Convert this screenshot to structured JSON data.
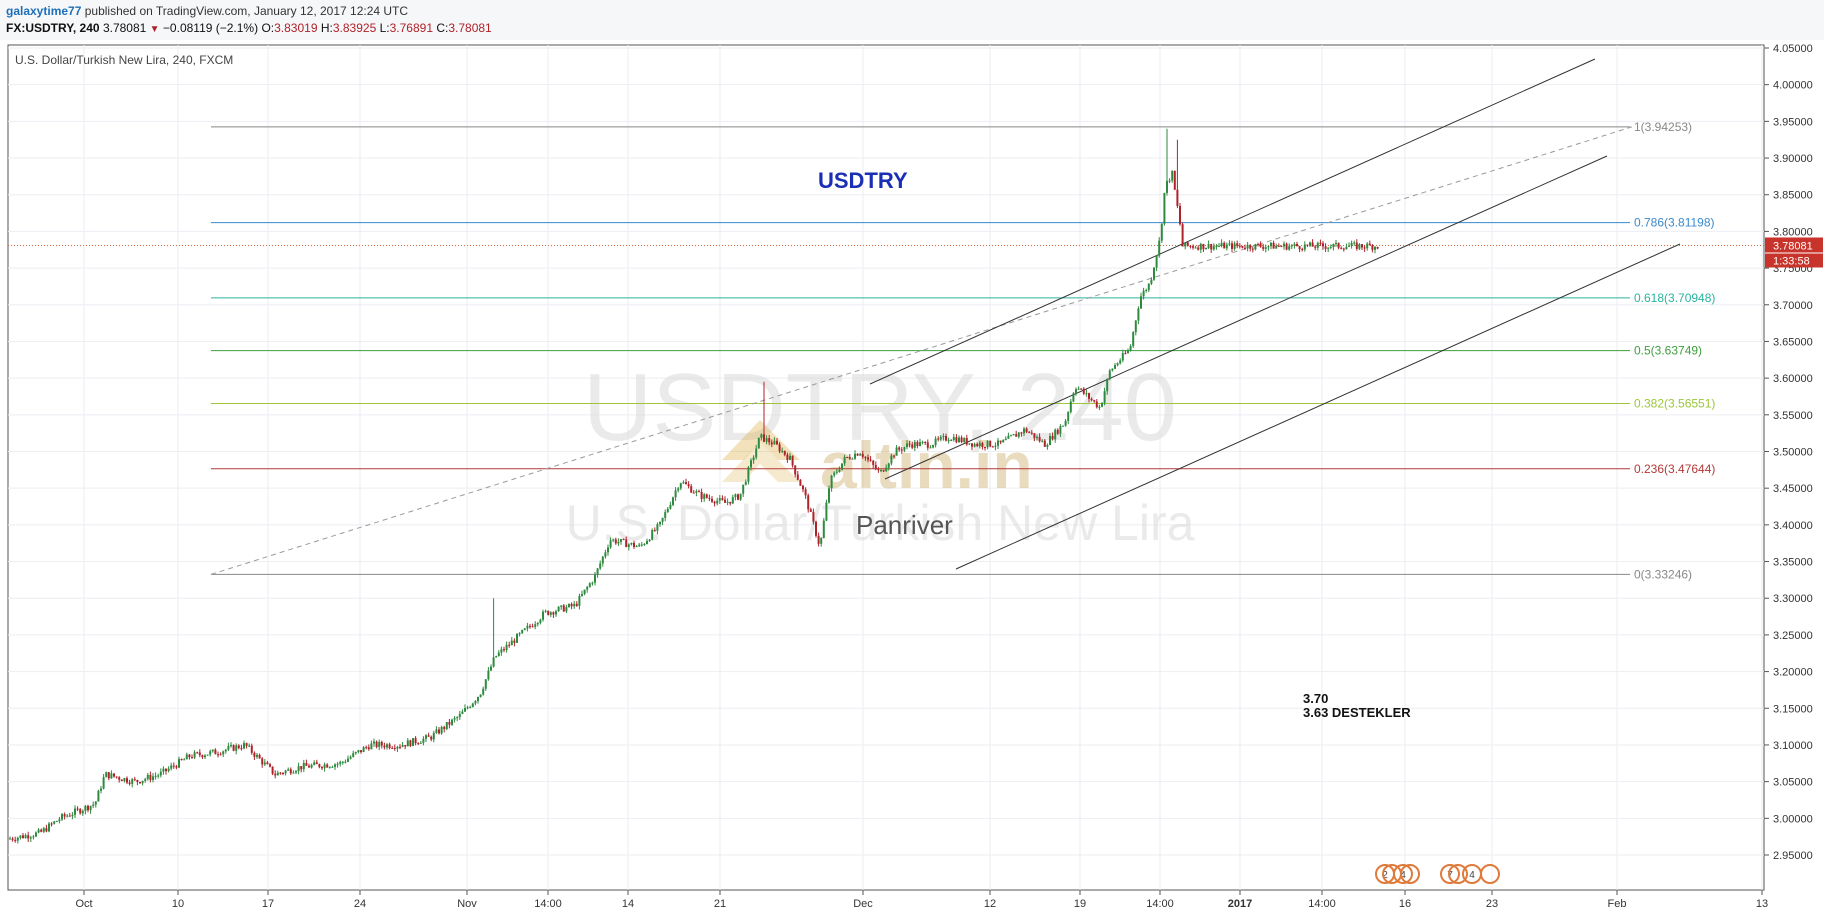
{
  "header": {
    "author": "galaxytime77",
    "published_text": "published on TradingView.com, January 12, 2017 12:24 UTC",
    "symbol": "FX:USDTRY, 240",
    "last_price": "3.78081",
    "change_arrow": "▼",
    "change": "−0.08119 (−2.1%)",
    "open_label": "O:",
    "open": "3.83019",
    "high_label": "H:",
    "high": "3.83925",
    "low_label": "L:",
    "low": "3.76891",
    "close_label": "C:",
    "close": "3.78081"
  },
  "chart_data": {
    "type": "candlestick",
    "title": "U.S. Dollar/Turkish New Lira, 240, FXCM",
    "watermark": {
      "line1": "USDTRY, 240",
      "line2": "U.S. Dollar/Turkish New Lira"
    },
    "overlay_texts": {
      "name": "USDTRY",
      "logo": "altin.in",
      "author": "Panriver",
      "note_line1": "3.70",
      "note_line2": "3.63  DESTEKLER"
    },
    "y_ticks": [
      "4.05000",
      "4.00000",
      "3.95000",
      "3.90000",
      "3.85000",
      "3.80000",
      "3.75000",
      "3.70000",
      "3.65000",
      "3.60000",
      "3.55000",
      "3.50000",
      "3.45000",
      "3.40000",
      "3.35000",
      "3.30000",
      "3.25000",
      "3.20000",
      "3.15000",
      "3.10000",
      "3.05000",
      "3.00000",
      "2.95000"
    ],
    "ylim": [
      2.925,
      4.06
    ],
    "x_ticks": [
      "Oct",
      "10",
      "17",
      "24",
      "Nov",
      "14:00",
      "14",
      "21",
      "Dec",
      "12",
      "19",
      "14:00",
      "2017",
      "14:00",
      "16",
      "23",
      "Feb",
      "13"
    ],
    "last_price_label": "3.78081",
    "countdown_label": "1:33:58",
    "fib_levels": [
      {
        "label": "1(3.94253)",
        "value": 3.94253,
        "color": "#888888"
      },
      {
        "label": "0.786(3.81198)",
        "value": 3.81198,
        "color": "#3a89c9"
      },
      {
        "label": "0.618(3.70948)",
        "value": 3.70948,
        "color": "#2bb3a0"
      },
      {
        "label": "0.5(3.63749)",
        "value": 3.63749,
        "color": "#3e9e3e"
      },
      {
        "label": "0.382(3.56551)",
        "value": 3.56551,
        "color": "#9cc63b"
      },
      {
        "label": "0.236(3.47644)",
        "value": 3.47644,
        "color": "#b33a3a"
      },
      {
        "label": "0(3.33246)",
        "value": 3.33246,
        "color": "#888888"
      }
    ],
    "price_anchors": [
      [
        0,
        2.97
      ],
      [
        40,
        2.98
      ],
      [
        60,
        3.0
      ],
      [
        95,
        3.02
      ],
      [
        105,
        3.06
      ],
      [
        135,
        3.05
      ],
      [
        160,
        3.06
      ],
      [
        190,
        3.085
      ],
      [
        215,
        3.09
      ],
      [
        245,
        3.1
      ],
      [
        275,
        3.06
      ],
      [
        300,
        3.07
      ],
      [
        340,
        3.075
      ],
      [
        370,
        3.1
      ],
      [
        400,
        3.1
      ],
      [
        430,
        3.11
      ],
      [
        460,
        3.14
      ],
      [
        480,
        3.17
      ],
      [
        495,
        3.22
      ],
      [
        520,
        3.25
      ],
      [
        545,
        3.28
      ],
      [
        575,
        3.29
      ],
      [
        595,
        3.33
      ],
      [
        610,
        3.38
      ],
      [
        640,
        3.37
      ],
      [
        660,
        3.4
      ],
      [
        680,
        3.46
      ],
      [
        700,
        3.44
      ],
      [
        725,
        3.43
      ],
      [
        740,
        3.44
      ],
      [
        760,
        3.52
      ],
      [
        775,
        3.51
      ],
      [
        790,
        3.49
      ],
      [
        805,
        3.44
      ],
      [
        820,
        3.37
      ],
      [
        830,
        3.46
      ],
      [
        845,
        3.49
      ],
      [
        860,
        3.5
      ],
      [
        880,
        3.47
      ],
      [
        895,
        3.5
      ],
      [
        910,
        3.51
      ],
      [
        930,
        3.51
      ],
      [
        950,
        3.52
      ],
      [
        975,
        3.51
      ],
      [
        1000,
        3.51
      ],
      [
        1025,
        3.53
      ],
      [
        1045,
        3.51
      ],
      [
        1065,
        3.54
      ],
      [
        1075,
        3.59
      ],
      [
        1100,
        3.56
      ],
      [
        1110,
        3.61
      ],
      [
        1130,
        3.64
      ],
      [
        1140,
        3.71
      ],
      [
        1150,
        3.73
      ],
      [
        1160,
        3.79
      ],
      [
        1165,
        3.86
      ],
      [
        1172,
        3.88
      ],
      [
        1180,
        3.81
      ],
      [
        1182,
        3.78
      ]
    ],
    "volatility": 0.01,
    "spikes": [
      [
        494,
        3.3
      ],
      [
        763,
        3.595
      ],
      [
        1167,
        3.94
      ],
      [
        1177,
        3.925
      ]
    ],
    "events": [
      "2",
      "4",
      "7",
      "4"
    ]
  }
}
